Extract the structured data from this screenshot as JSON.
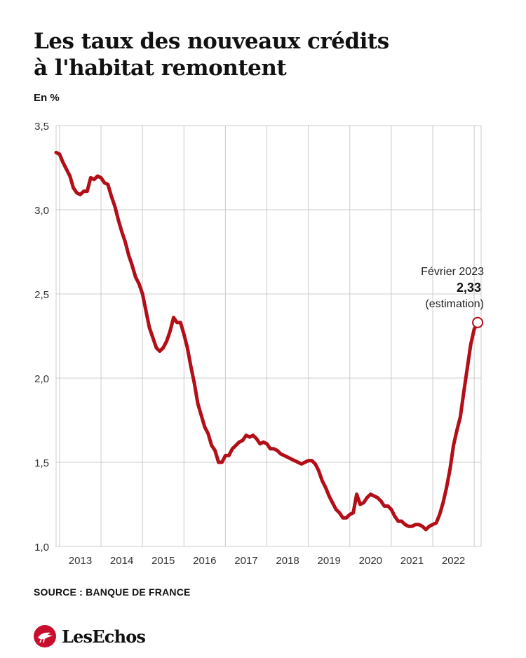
{
  "title_line1": "Les taux des nouveaux crédits",
  "title_line2": "à l'habitat remontent",
  "unit_label": "En %",
  "source": "SOURCE : BANQUE DE FRANCE",
  "logo_text": "LesEchos",
  "colors": {
    "line": "#b30f18",
    "grid": "#cccccc",
    "text": "#111111",
    "logo": "#c8102e"
  },
  "chart_data": {
    "type": "line",
    "title": "Les taux des nouveaux crédits à l'habitat remontent",
    "ylabel": "En %",
    "ylim": [
      1.0,
      3.5
    ],
    "y_ticks": [
      "1,0",
      "1,5",
      "2,0",
      "2,5",
      "3,0",
      "3,5"
    ],
    "x_tick_labels": [
      "2013",
      "2014",
      "2015",
      "2016",
      "2017",
      "2018",
      "2019",
      "2020",
      "2021",
      "2022"
    ],
    "xlim": [
      "2012-12",
      "2023-03"
    ],
    "grid": true,
    "series": [
      {
        "color": "#b30f18",
        "points": [
          [
            "2012-12",
            3.34
          ],
          [
            "2013-01",
            3.33
          ],
          [
            "2013-02",
            3.28
          ],
          [
            "2013-03",
            3.24
          ],
          [
            "2013-04",
            3.2
          ],
          [
            "2013-05",
            3.13
          ],
          [
            "2013-06",
            3.1
          ],
          [
            "2013-07",
            3.09
          ],
          [
            "2013-08",
            3.11
          ],
          [
            "2013-09",
            3.11
          ],
          [
            "2013-10",
            3.19
          ],
          [
            "2013-11",
            3.18
          ],
          [
            "2013-12",
            3.2
          ],
          [
            "2014-01",
            3.19
          ],
          [
            "2014-02",
            3.16
          ],
          [
            "2014-03",
            3.15
          ],
          [
            "2014-04",
            3.08
          ],
          [
            "2014-05",
            3.02
          ],
          [
            "2014-06",
            2.94
          ],
          [
            "2014-07",
            2.87
          ],
          [
            "2014-08",
            2.81
          ],
          [
            "2014-09",
            2.73
          ],
          [
            "2014-10",
            2.67
          ],
          [
            "2014-11",
            2.6
          ],
          [
            "2014-12",
            2.56
          ],
          [
            "2015-01",
            2.5
          ],
          [
            "2015-02",
            2.4
          ],
          [
            "2015-03",
            2.3
          ],
          [
            "2015-04",
            2.24
          ],
          [
            "2015-05",
            2.18
          ],
          [
            "2015-06",
            2.16
          ],
          [
            "2015-07",
            2.18
          ],
          [
            "2015-08",
            2.22
          ],
          [
            "2015-09",
            2.28
          ],
          [
            "2015-10",
            2.36
          ],
          [
            "2015-11",
            2.33
          ],
          [
            "2015-12",
            2.33
          ],
          [
            "2016-01",
            2.26
          ],
          [
            "2016-02",
            2.18
          ],
          [
            "2016-03",
            2.07
          ],
          [
            "2016-04",
            1.97
          ],
          [
            "2016-05",
            1.85
          ],
          [
            "2016-06",
            1.78
          ],
          [
            "2016-07",
            1.71
          ],
          [
            "2016-08",
            1.67
          ],
          [
            "2016-09",
            1.6
          ],
          [
            "2016-10",
            1.57
          ],
          [
            "2016-11",
            1.5
          ],
          [
            "2016-12",
            1.5
          ],
          [
            "2017-01",
            1.54
          ],
          [
            "2017-02",
            1.54
          ],
          [
            "2017-03",
            1.58
          ],
          [
            "2017-04",
            1.6
          ],
          [
            "2017-05",
            1.62
          ],
          [
            "2017-06",
            1.63
          ],
          [
            "2017-07",
            1.66
          ],
          [
            "2017-08",
            1.65
          ],
          [
            "2017-09",
            1.66
          ],
          [
            "2017-10",
            1.64
          ],
          [
            "2017-11",
            1.61
          ],
          [
            "2017-12",
            1.62
          ],
          [
            "2018-01",
            1.61
          ],
          [
            "2018-02",
            1.58
          ],
          [
            "2018-03",
            1.58
          ],
          [
            "2018-04",
            1.57
          ],
          [
            "2018-05",
            1.55
          ],
          [
            "2018-06",
            1.54
          ],
          [
            "2018-07",
            1.53
          ],
          [
            "2018-08",
            1.52
          ],
          [
            "2018-09",
            1.51
          ],
          [
            "2018-10",
            1.5
          ],
          [
            "2018-11",
            1.49
          ],
          [
            "2018-12",
            1.5
          ],
          [
            "2019-01",
            1.51
          ],
          [
            "2019-02",
            1.51
          ],
          [
            "2019-03",
            1.49
          ],
          [
            "2019-04",
            1.45
          ],
          [
            "2019-05",
            1.39
          ],
          [
            "2019-06",
            1.35
          ],
          [
            "2019-07",
            1.3
          ],
          [
            "2019-08",
            1.26
          ],
          [
            "2019-09",
            1.22
          ],
          [
            "2019-10",
            1.2
          ],
          [
            "2019-11",
            1.17
          ],
          [
            "2019-12",
            1.17
          ],
          [
            "2020-01",
            1.19
          ],
          [
            "2020-02",
            1.2
          ],
          [
            "2020-03",
            1.31
          ],
          [
            "2020-04",
            1.25
          ],
          [
            "2020-05",
            1.26
          ],
          [
            "2020-06",
            1.29
          ],
          [
            "2020-07",
            1.31
          ],
          [
            "2020-08",
            1.3
          ],
          [
            "2020-09",
            1.29
          ],
          [
            "2020-10",
            1.27
          ],
          [
            "2020-11",
            1.24
          ],
          [
            "2020-12",
            1.24
          ],
          [
            "2021-01",
            1.22
          ],
          [
            "2021-02",
            1.18
          ],
          [
            "2021-03",
            1.15
          ],
          [
            "2021-04",
            1.15
          ],
          [
            "2021-05",
            1.13
          ],
          [
            "2021-06",
            1.12
          ],
          [
            "2021-07",
            1.12
          ],
          [
            "2021-08",
            1.13
          ],
          [
            "2021-09",
            1.13
          ],
          [
            "2021-10",
            1.12
          ],
          [
            "2021-11",
            1.1
          ],
          [
            "2021-12",
            1.12
          ],
          [
            "2022-01",
            1.13
          ],
          [
            "2022-02",
            1.14
          ],
          [
            "2022-03",
            1.19
          ],
          [
            "2022-04",
            1.26
          ],
          [
            "2022-05",
            1.35
          ],
          [
            "2022-06",
            1.46
          ],
          [
            "2022-07",
            1.6
          ],
          [
            "2022-08",
            1.69
          ],
          [
            "2022-09",
            1.77
          ],
          [
            "2022-10",
            1.92
          ],
          [
            "2022-11",
            2.06
          ],
          [
            "2022-12",
            2.2
          ],
          [
            "2023-01",
            2.29
          ],
          [
            "2023-02",
            2.33
          ]
        ]
      }
    ],
    "annotation": {
      "date": "2023-02",
      "value": 2.33,
      "line1": "Février 2023",
      "line2": "2,33",
      "line3": "(estimation)"
    }
  }
}
